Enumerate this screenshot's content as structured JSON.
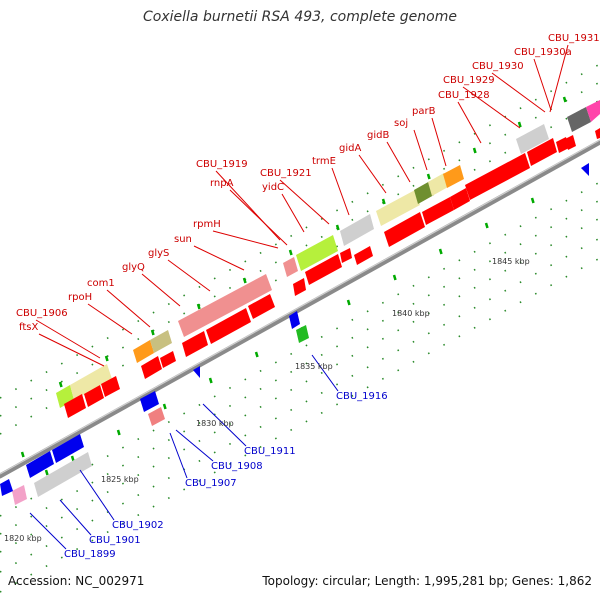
{
  "title": "Coxiella burnetii RSA 493, complete genome",
  "accession": "Accession: NC_002971",
  "topology": "Topology: circular; Length: 1,995,281 bp; Genes: 1,862",
  "colors": {
    "backbone": "#888888",
    "tick": "#009900",
    "cds_red": "#ff0000",
    "cds_blue": "#0000ee",
    "lower_label": "#0000cc",
    "upper_label": "#cc0000"
  },
  "scale_labels": [
    "1820 kbp",
    "1825 kbp",
    "1830 kbp",
    "1835 kbp",
    "1840 kbp",
    "1845 kbp"
  ],
  "upper_genes": [
    "CBU_1906",
    "ftsX",
    "rpoH",
    "com1",
    "glyQ",
    "glyS",
    "sun",
    "rpmH",
    "rnpA",
    "CBU_1919",
    "yidC",
    "CBU_1921",
    "trmE",
    "gidA",
    "gidB",
    "soj",
    "parB",
    "CBU_1928",
    "CBU_1929",
    "CBU_1930",
    "CBU_1930a",
    "CBU_1931"
  ],
  "lower_genes": [
    "CBU_1899",
    "CBU_1901",
    "CBU_1902",
    "CBU_1907",
    "CBU_1908",
    "CBU_1911",
    "CBU_1916"
  ]
}
